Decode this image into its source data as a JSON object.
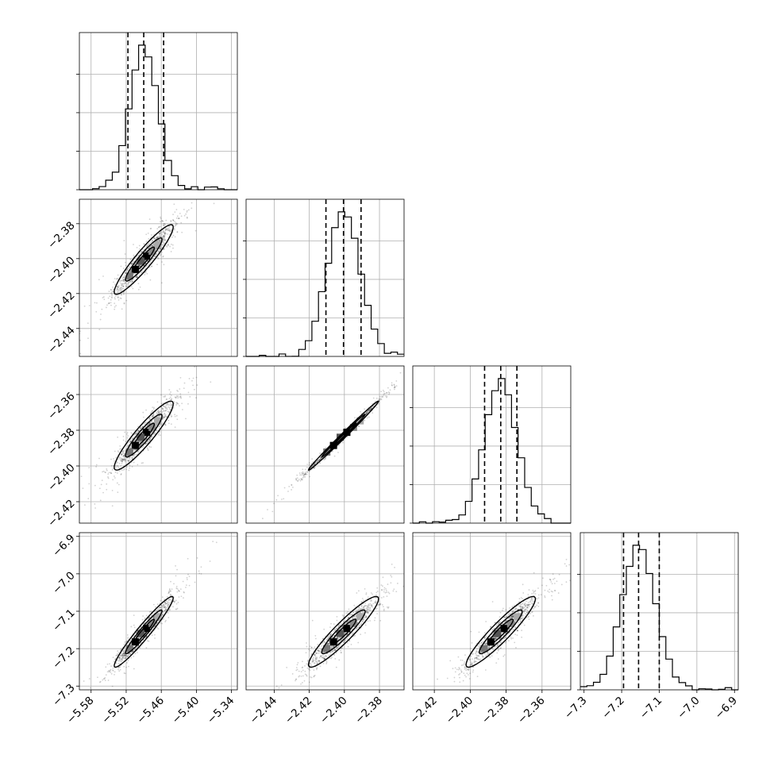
{
  "chart_data": {
    "type": "corner",
    "title": "",
    "grid": true,
    "parameters": [
      {
        "index": 0,
        "range": [
          -5.6,
          -5.33
        ],
        "ticks": [
          -5.58,
          -5.52,
          -5.46,
          -5.4,
          -5.34
        ],
        "tick_labels": [
          "−5.58",
          "−5.52",
          "−5.46",
          "−5.40",
          "−5.34"
        ],
        "median": -5.49,
        "quantiles": [
          -5.517,
          -5.49,
          -5.456
        ],
        "spread": 0.024
      },
      {
        "index": 1,
        "range": [
          -2.456,
          -2.366
        ],
        "ticks": [
          -2.44,
          -2.42,
          -2.4,
          -2.38
        ],
        "tick_labels": [
          "−2.44",
          "−2.42",
          "−2.40",
          "−2.38"
        ],
        "median": -2.4005,
        "quantiles": [
          -2.4105,
          -2.4005,
          -2.3905
        ],
        "spread": 0.0095
      },
      {
        "index": 2,
        "range": [
          -2.432,
          -2.344
        ],
        "ticks": [
          -2.42,
          -2.4,
          -2.38,
          -2.36
        ],
        "tick_labels": [
          "−2.42",
          "−2.40",
          "−2.38",
          "−2.36"
        ],
        "median": -2.383,
        "quantiles": [
          -2.392,
          -2.383,
          -2.374
        ],
        "spread": 0.0092
      },
      {
        "index": 3,
        "range": [
          -7.31,
          -6.89
        ],
        "ticks": [
          -7.3,
          -7.2,
          -7.1,
          -7.0,
          -6.9
        ],
        "tick_labels": [
          "−7.3",
          "−7.2",
          "−7.1",
          "−7.0",
          "−6.9"
        ],
        "median": -7.155,
        "quantiles": [
          -7.195,
          -7.155,
          -7.1
        ],
        "spread": 0.045
      }
    ],
    "correlations": {
      "0-1": 0.93,
      "0-2": 0.92,
      "0-3": 0.96,
      "1-2": 0.995,
      "1-3": 0.93,
      "2-3": 0.93
    }
  }
}
